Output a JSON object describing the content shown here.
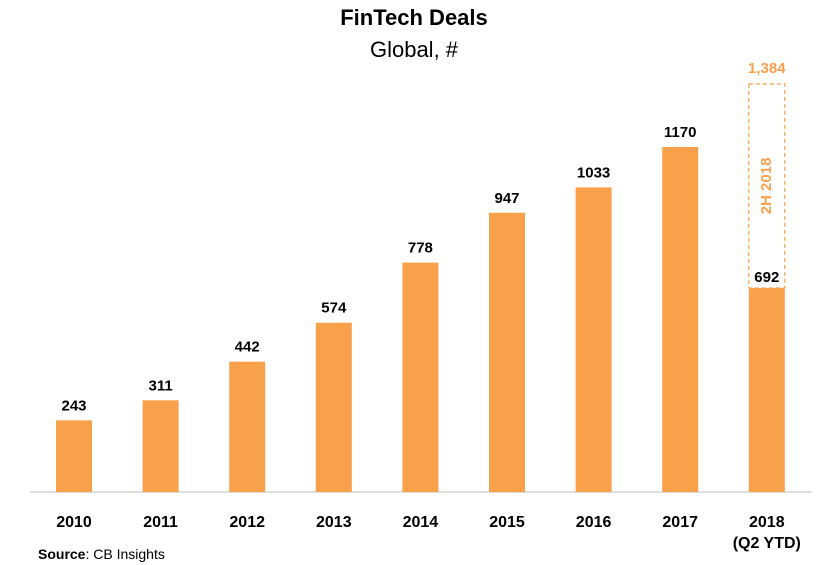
{
  "chart_data": {
    "type": "bar",
    "title": "FinTech Deals",
    "subtitle": "Global, #",
    "categories": [
      "2010",
      "2011",
      "2012",
      "2013",
      "2014",
      "2015",
      "2016",
      "2017",
      "2018"
    ],
    "category_sublabels": {
      "2018": "(Q2 YTD)"
    },
    "values": [
      243,
      311,
      442,
      574,
      778,
      947,
      1033,
      1170,
      692
    ],
    "value_labels": [
      "243",
      "311",
      "442",
      "574",
      "778",
      "947",
      "1033",
      "1170",
      "692"
    ],
    "projection": {
      "category": "2018",
      "label": "2H 2018",
      "total": 1384,
      "total_label": "1,384"
    },
    "ylim": [
      0,
      1400
    ],
    "xlabel": "",
    "ylabel": "",
    "grid": false,
    "colors": {
      "bar": "#F9A04B",
      "projection": "#F9A04B",
      "label": "#000000"
    }
  },
  "source": {
    "label": "Source",
    "text": ": CB Insights"
  }
}
